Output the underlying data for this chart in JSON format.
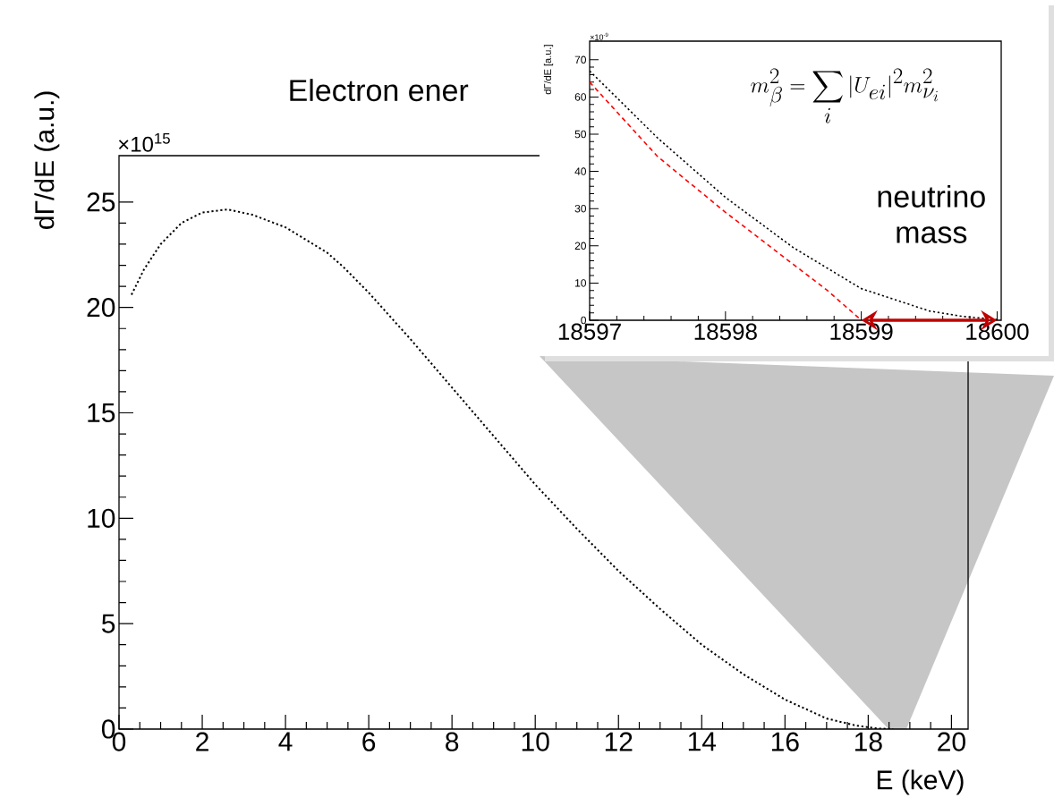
{
  "chart_data": [
    {
      "type": "line",
      "title": "Electron ener",
      "xlabel": "E (keV)",
      "ylabel": "dΓ/dE (a.u.)",
      "annotations": [
        "×10$^{15}$"
      ],
      "xlim": [
        0,
        20.4
      ],
      "ylim": [
        0,
        27.2
      ],
      "xticks": [
        0,
        2,
        4,
        6,
        8,
        10,
        12,
        14,
        16,
        18,
        20
      ],
      "yticks": [
        0,
        5,
        10,
        15,
        20,
        25
      ],
      "series": [
        {
          "color": "#000000",
          "line_style": "dotted",
          "x": [
            0.3,
            0.6,
            1.0,
            1.5,
            2.0,
            2.6,
            3.2,
            4.0,
            5.0,
            5.4,
            6,
            7,
            8,
            9,
            10,
            11,
            12,
            13,
            14,
            15,
            16,
            17,
            17.7,
            18.2,
            18.6
          ],
          "values": [
            20.6,
            21.8,
            23.0,
            24.0,
            24.5,
            24.65,
            24.4,
            23.8,
            22.6,
            21.9,
            20.7,
            18.5,
            16.2,
            13.9,
            11.6,
            9.5,
            7.5,
            5.7,
            4.0,
            2.6,
            1.4,
            0.5,
            0.17,
            0.03,
            0
          ]
        }
      ]
    },
    {
      "type": "line",
      "ylabel": "dΓ/dE [a.u.]",
      "annotations": [
        "×10$^{-9}$",
        "m_{\\beta}^2 = \\sum_i |U_{ei}|^2 m_{\\nu_i}^2",
        "neutrino mass"
      ],
      "xlim": [
        18597,
        18600.03
      ],
      "ylim": [
        0,
        75
      ],
      "xticks": [
        18597,
        18598,
        18599,
        18600
      ],
      "yticks": [
        0,
        10,
        20,
        30,
        40,
        50,
        60,
        70
      ],
      "series": [
        {
          "color": "#000000",
          "line_style": "dotted",
          "x": [
            18597,
            18597.5,
            18598,
            18598.5,
            18599,
            18599.5,
            18599.75,
            18600
          ],
          "values": [
            67,
            49,
            33,
            19.5,
            8.5,
            2.5,
            1,
            0.2
          ]
        },
        {
          "color": "#ff0000",
          "line_style": "dashed",
          "x": [
            18597,
            18597.5,
            18598,
            18598.5,
            18598.75,
            18599
          ],
          "values": [
            64,
            44,
            29,
            15,
            8,
            0
          ]
        }
      ]
    }
  ]
}
